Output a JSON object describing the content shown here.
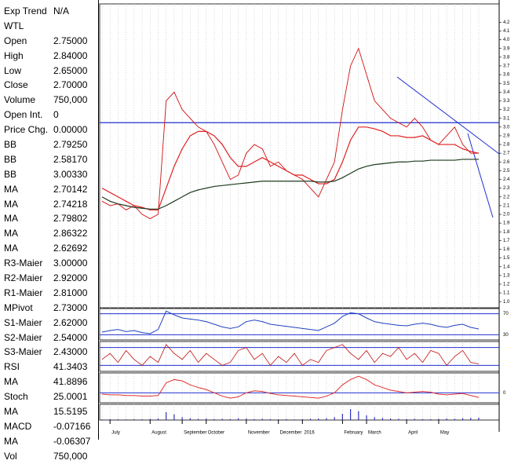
{
  "panel": {
    "rows": [
      [
        "Exp Trend",
        "N/A"
      ],
      [
        "WTL",
        ""
      ],
      [
        "Open",
        "2.75000"
      ],
      [
        "High",
        "2.84000"
      ],
      [
        "Low",
        "2.65000"
      ],
      [
        "Close",
        "2.70000"
      ],
      [
        "Volume",
        "750,000"
      ],
      [
        "Open Int.",
        "0"
      ],
      [
        "Price Chg.",
        "0.00000"
      ],
      [
        "BB",
        "2.79250"
      ],
      [
        "BB",
        "2.58170"
      ],
      [
        "BB",
        "3.00330"
      ],
      [
        "MA",
        "2.70142"
      ],
      [
        "MA",
        "2.74218"
      ],
      [
        "MA",
        "2.79802"
      ],
      [
        "MA",
        "2.86322"
      ],
      [
        "MA",
        "2.62692"
      ],
      [
        "R3-Maier",
        "3.00000"
      ],
      [
        "R2-Maier",
        "2.92000"
      ],
      [
        "R1-Maier",
        "2.81000"
      ],
      [
        "MPivot",
        "2.73000"
      ],
      [
        "S1-Maier",
        "2.62000"
      ],
      [
        "S2-Maier",
        "2.54000"
      ],
      [
        "S3-Maier",
        "2.43000"
      ],
      [
        "RSI",
        "41.3403"
      ],
      [
        "MA",
        "41.8896"
      ],
      [
        "Stoch",
        "25.0001"
      ],
      [
        "MA",
        "15.5195"
      ],
      [
        "MACD",
        "-0.07166"
      ],
      [
        "MA",
        "-0.06307"
      ],
      [
        "Vol",
        "750,000"
      ]
    ]
  },
  "chart_data": {
    "type": "line",
    "xlim": [
      0,
      47
    ],
    "xticks": [
      {
        "value": 1,
        "label": "July"
      },
      {
        "value": 6,
        "label": "August"
      },
      {
        "value": 10,
        "label": "September"
      },
      {
        "value": 13,
        "label": "October"
      },
      {
        "value": 18,
        "label": "November"
      },
      {
        "value": 22,
        "label": "December"
      },
      {
        "value": 25,
        "label": "2016"
      },
      {
        "value": 30,
        "label": "February"
      },
      {
        "value": 33,
        "label": "March"
      },
      {
        "value": 38,
        "label": "April"
      },
      {
        "value": 42,
        "label": "May"
      }
    ],
    "ylim": [
      0.93,
      4.41
    ],
    "yticks": [
      {
        "value": 1,
        "label": "1.0"
      },
      1.1,
      1.2,
      1.3,
      1.4,
      1.5,
      1.6,
      1.7,
      1.8,
      1.9,
      {
        "value": 2,
        "label": "2.0"
      },
      2.1,
      2.2,
      2.3,
      2.4,
      2.5,
      2.6,
      2.7,
      2.8,
      2.9,
      {
        "value": 3,
        "label": "3.0"
      },
      3.1,
      3.2,
      3.3,
      3.4,
      3.5,
      3.6,
      3.7,
      3.8,
      3.9,
      {
        "value": 4,
        "label": "4.0"
      },
      4.1,
      4.2
    ],
    "hline": 3.05,
    "series": [
      {
        "name": "Close",
        "color": "#d01010",
        "values": [
          2.15,
          2.1,
          2.12,
          2.05,
          2.1,
          2.0,
          1.95,
          2.0,
          3.3,
          3.4,
          3.2,
          3.1,
          3.0,
          2.95,
          2.8,
          2.6,
          2.4,
          2.45,
          2.7,
          2.8,
          2.75,
          2.55,
          2.6,
          2.5,
          2.45,
          2.4,
          2.3,
          2.2,
          2.4,
          2.6,
          3.2,
          3.7,
          3.9,
          3.6,
          3.3,
          3.2,
          3.1,
          3.05,
          3.0,
          3.1,
          3.0,
          2.85,
          2.8,
          2.9,
          3.0,
          2.8,
          2.7,
          2.7
        ]
      },
      {
        "name": "MA",
        "color": "#e02020",
        "values": [
          2.3,
          2.25,
          2.2,
          2.15,
          2.1,
          2.08,
          2.05,
          2.05,
          2.3,
          2.55,
          2.75,
          2.9,
          2.95,
          2.95,
          2.9,
          2.8,
          2.65,
          2.55,
          2.55,
          2.6,
          2.65,
          2.6,
          2.55,
          2.5,
          2.45,
          2.45,
          2.4,
          2.35,
          2.35,
          2.4,
          2.6,
          2.85,
          3.0,
          3.0,
          2.98,
          2.95,
          2.9,
          2.9,
          2.88,
          2.88,
          2.9,
          2.85,
          2.8,
          2.8,
          2.8,
          2.75,
          2.72,
          2.7
        ]
      },
      {
        "name": "MA",
        "color": "#1e3a1e",
        "values": [
          2.2,
          2.15,
          2.12,
          2.1,
          2.08,
          2.07,
          2.06,
          2.06,
          2.1,
          2.15,
          2.2,
          2.25,
          2.28,
          2.3,
          2.32,
          2.33,
          2.34,
          2.35,
          2.36,
          2.37,
          2.38,
          2.38,
          2.38,
          2.38,
          2.38,
          2.38,
          2.38,
          2.37,
          2.37,
          2.38,
          2.42,
          2.47,
          2.52,
          2.55,
          2.57,
          2.58,
          2.59,
          2.6,
          2.6,
          2.61,
          2.61,
          2.62,
          2.62,
          2.62,
          2.62,
          2.63,
          2.63,
          2.63
        ]
      }
    ],
    "rsi": {
      "ylim": [
        20,
        80
      ],
      "yticks": [
        30,
        70
      ],
      "color": "#2040c0",
      "values": [
        35,
        38,
        40,
        36,
        38,
        34,
        32,
        40,
        75,
        68,
        62,
        60,
        58,
        55,
        50,
        45,
        42,
        45,
        55,
        58,
        55,
        50,
        48,
        46,
        44,
        42,
        40,
        38,
        45,
        52,
        65,
        72,
        70,
        62,
        55,
        52,
        50,
        48,
        47,
        50,
        52,
        50,
        46,
        44,
        48,
        50,
        44,
        41
      ]
    },
    "stoch": {
      "ylim": [
        0,
        100
      ],
      "lines": [
        20,
        80
      ],
      "color": "#c01010",
      "values": [
        40,
        60,
        30,
        70,
        40,
        20,
        50,
        30,
        90,
        60,
        40,
        70,
        30,
        60,
        40,
        20,
        30,
        70,
        80,
        40,
        60,
        20,
        50,
        30,
        60,
        20,
        40,
        30,
        70,
        80,
        90,
        60,
        40,
        70,
        30,
        60,
        50,
        80,
        40,
        60,
        30,
        70,
        60,
        20,
        50,
        70,
        30,
        25
      ]
    },
    "macd": {
      "ylim": [
        -0.15,
        0.3
      ],
      "yticks": [
        0
      ],
      "color": "#e03030",
      "values": [
        -0.02,
        -0.03,
        -0.03,
        -0.04,
        -0.04,
        -0.05,
        -0.05,
        -0.04,
        0.15,
        0.2,
        0.18,
        0.12,
        0.08,
        0.05,
        0.0,
        -0.05,
        -0.08,
        -0.06,
        0.0,
        0.03,
        0.02,
        -0.01,
        -0.03,
        -0.04,
        -0.05,
        -0.06,
        -0.07,
        -0.08,
        -0.05,
        0.0,
        0.12,
        0.2,
        0.25,
        0.2,
        0.12,
        0.08,
        0.04,
        0.02,
        0.0,
        0.01,
        0.02,
        0.01,
        -0.02,
        -0.03,
        -0.02,
        -0.01,
        -0.04,
        -0.07
      ]
    },
    "volume": {
      "ylim": [
        0,
        5000000
      ],
      "color": "#3030c0",
      "values": [
        200000,
        300000,
        250000,
        200000,
        300000,
        250000,
        400000,
        500000,
        2500000,
        1800000,
        900000,
        600000,
        400000,
        500000,
        300000,
        400000,
        300000,
        600000,
        500000,
        300000,
        400000,
        300000,
        200000,
        300000,
        200000,
        300000,
        400000,
        500000,
        600000,
        900000,
        2000000,
        3500000,
        2800000,
        1500000,
        900000,
        700000,
        500000,
        400000,
        300000,
        400000,
        300000,
        300000,
        400000,
        500000,
        400000,
        600000,
        700000,
        750000
      ]
    }
  }
}
